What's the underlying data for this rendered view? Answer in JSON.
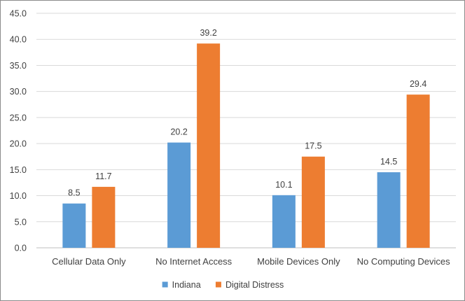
{
  "chart_data": {
    "type": "bar",
    "title": "",
    "xlabel": "",
    "ylabel": "",
    "ylim": [
      0,
      45
    ],
    "ytick_step": 5,
    "ytick_labels": [
      "0.0",
      "5.0",
      "10.0",
      "15.0",
      "20.0",
      "25.0",
      "30.0",
      "35.0",
      "40.0",
      "45.0"
    ],
    "grid": true,
    "legend_position": "bottom",
    "categories": [
      "Cellular Data Only",
      "No Internet Access",
      "Mobile Devices Only",
      "No Computing Devices"
    ],
    "series": [
      {
        "name": "Indiana",
        "color": "#5b9bd5",
        "values": [
          8.5,
          20.2,
          10.1,
          14.5
        ],
        "labels": [
          "8.5",
          "20.2",
          "10.1",
          "14.5"
        ]
      },
      {
        "name": "Digital Distress",
        "color": "#ed7d31",
        "values": [
          11.7,
          39.2,
          17.5,
          29.4
        ],
        "labels": [
          "11.7",
          "39.2",
          "17.5",
          "29.4"
        ]
      }
    ]
  }
}
